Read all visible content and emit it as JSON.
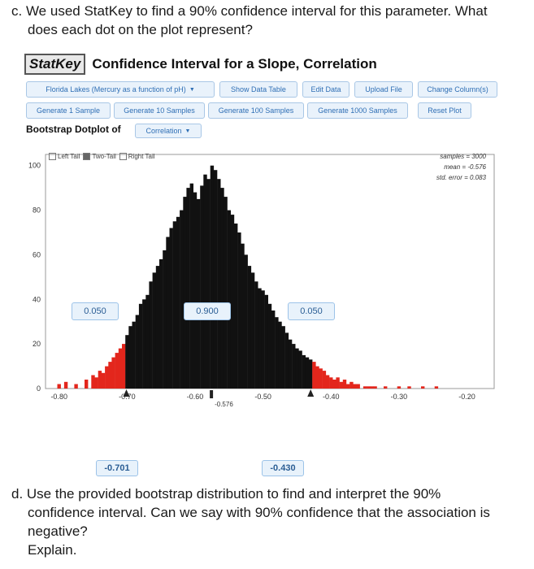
{
  "question_c": {
    "line1": "c. We used StatKey to find a 90% confidence interval for this parameter. What",
    "line2": "does each dot on the plot represent?"
  },
  "question_d": {
    "line1": "d. Use the provided bootstrap distribution to find and interpret the 90%",
    "line2": "confidence interval. Can we say with 90% confidence that the association is",
    "line3": "negative?",
    "line4": "Explain."
  },
  "app": {
    "logo": "StatKey",
    "title": "Confidence Interval for a Slope, Correlation"
  },
  "toolbar": {
    "dataset": "Florida Lakes (Mercury as a function of pH)",
    "show_data_table": "Show Data Table",
    "edit_data": "Edit Data",
    "upload_file": "Upload File",
    "change_columns": "Change Column(s)",
    "generate_1": "Generate 1 Sample",
    "generate_10": "Generate 10 Samples",
    "generate_100": "Generate 100 Samples",
    "generate_1000": "Generate 1000 Samples",
    "reset_plot": "Reset Plot"
  },
  "dotplot": {
    "label": "Bootstrap Dotplot of",
    "statistic": "Correlation"
  },
  "tails": {
    "left": "Left Tail",
    "two": "Two-Tail",
    "right": "Right Tail"
  },
  "stats": {
    "samples": "samples = 3000",
    "mean": "mean = -0.576",
    "std_error": "std. error = 0.083"
  },
  "interval": {
    "left_prop": "0.050",
    "middle_prop": "0.900",
    "right_prop": "0.050",
    "lower": "-0.701",
    "upper": "-0.430",
    "center_marker": "-0.576"
  },
  "colors": {
    "inside": "#111111",
    "tail": "#e3261c",
    "accent": "#2f6fb5"
  },
  "chart_data": {
    "type": "bar",
    "x_ticks": [
      "-0.80",
      "-0.70",
      "-0.60",
      "-0.50",
      "-0.40",
      "-0.30",
      "-0.20"
    ],
    "y_ticks": [
      "0",
      "20",
      "40",
      "60",
      "80",
      "100"
    ],
    "xlim": [
      -0.82,
      -0.16
    ],
    "ylim": [
      0,
      105
    ],
    "bins": [
      {
        "x": -0.8,
        "y": 2
      },
      {
        "x": -0.79,
        "y": 3
      },
      {
        "x": -0.775,
        "y": 2
      },
      {
        "x": -0.76,
        "y": 4
      },
      {
        "x": -0.75,
        "y": 6
      },
      {
        "x": -0.745,
        "y": 5
      },
      {
        "x": -0.74,
        "y": 8
      },
      {
        "x": -0.735,
        "y": 7
      },
      {
        "x": -0.73,
        "y": 10
      },
      {
        "x": -0.725,
        "y": 12
      },
      {
        "x": -0.72,
        "y": 14
      },
      {
        "x": -0.715,
        "y": 16
      },
      {
        "x": -0.71,
        "y": 18
      },
      {
        "x": -0.705,
        "y": 20
      },
      {
        "x": -0.7,
        "y": 24
      },
      {
        "x": -0.695,
        "y": 28
      },
      {
        "x": -0.69,
        "y": 30
      },
      {
        "x": -0.685,
        "y": 33
      },
      {
        "x": -0.68,
        "y": 38
      },
      {
        "x": -0.675,
        "y": 40
      },
      {
        "x": -0.67,
        "y": 42
      },
      {
        "x": -0.665,
        "y": 48
      },
      {
        "x": -0.66,
        "y": 52
      },
      {
        "x": -0.655,
        "y": 55
      },
      {
        "x": -0.65,
        "y": 58
      },
      {
        "x": -0.645,
        "y": 62
      },
      {
        "x": -0.64,
        "y": 68
      },
      {
        "x": -0.635,
        "y": 72
      },
      {
        "x": -0.63,
        "y": 75
      },
      {
        "x": -0.625,
        "y": 77
      },
      {
        "x": -0.62,
        "y": 80
      },
      {
        "x": -0.615,
        "y": 86
      },
      {
        "x": -0.61,
        "y": 90
      },
      {
        "x": -0.605,
        "y": 92
      },
      {
        "x": -0.6,
        "y": 88
      },
      {
        "x": -0.595,
        "y": 85
      },
      {
        "x": -0.59,
        "y": 91
      },
      {
        "x": -0.585,
        "y": 96
      },
      {
        "x": -0.58,
        "y": 94
      },
      {
        "x": -0.575,
        "y": 100
      },
      {
        "x": -0.57,
        "y": 98
      },
      {
        "x": -0.565,
        "y": 94
      },
      {
        "x": -0.56,
        "y": 90
      },
      {
        "x": -0.555,
        "y": 86
      },
      {
        "x": -0.55,
        "y": 80
      },
      {
        "x": -0.545,
        "y": 78
      },
      {
        "x": -0.54,
        "y": 74
      },
      {
        "x": -0.535,
        "y": 70
      },
      {
        "x": -0.53,
        "y": 65
      },
      {
        "x": -0.525,
        "y": 60
      },
      {
        "x": -0.52,
        "y": 55
      },
      {
        "x": -0.515,
        "y": 52
      },
      {
        "x": -0.51,
        "y": 48
      },
      {
        "x": -0.505,
        "y": 45
      },
      {
        "x": -0.5,
        "y": 44
      },
      {
        "x": -0.495,
        "y": 42
      },
      {
        "x": -0.49,
        "y": 38
      },
      {
        "x": -0.485,
        "y": 35
      },
      {
        "x": -0.48,
        "y": 32
      },
      {
        "x": -0.475,
        "y": 30
      },
      {
        "x": -0.47,
        "y": 28
      },
      {
        "x": -0.465,
        "y": 25
      },
      {
        "x": -0.46,
        "y": 22
      },
      {
        "x": -0.455,
        "y": 20
      },
      {
        "x": -0.45,
        "y": 18
      },
      {
        "x": -0.445,
        "y": 17
      },
      {
        "x": -0.44,
        "y": 15
      },
      {
        "x": -0.435,
        "y": 14
      },
      {
        "x": -0.43,
        "y": 13
      },
      {
        "x": -0.425,
        "y": 12
      },
      {
        "x": -0.42,
        "y": 10
      },
      {
        "x": -0.415,
        "y": 9
      },
      {
        "x": -0.41,
        "y": 8
      },
      {
        "x": -0.405,
        "y": 6
      },
      {
        "x": -0.4,
        "y": 5
      },
      {
        "x": -0.395,
        "y": 4
      },
      {
        "x": -0.39,
        "y": 5
      },
      {
        "x": -0.385,
        "y": 3
      },
      {
        "x": -0.38,
        "y": 4
      },
      {
        "x": -0.375,
        "y": 2
      },
      {
        "x": -0.37,
        "y": 3
      },
      {
        "x": -0.365,
        "y": 2
      },
      {
        "x": -0.36,
        "y": 2
      },
      {
        "x": -0.35,
        "y": 1
      },
      {
        "x": -0.345,
        "y": 1
      },
      {
        "x": -0.34,
        "y": 1
      },
      {
        "x": -0.335,
        "y": 1
      },
      {
        "x": -0.32,
        "y": 1
      },
      {
        "x": -0.3,
        "y": 1
      },
      {
        "x": -0.285,
        "y": 1
      },
      {
        "x": -0.265,
        "y": 1
      },
      {
        "x": -0.245,
        "y": 1
      }
    ],
    "interval": [
      -0.701,
      -0.43
    ],
    "xlabel": "",
    "ylabel": "",
    "grid": false,
    "legend": "none"
  }
}
